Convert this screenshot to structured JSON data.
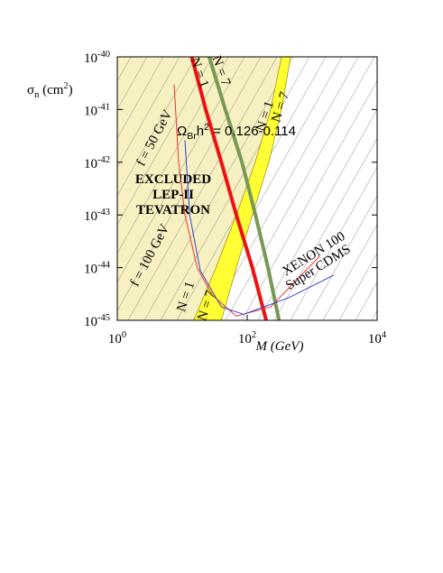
{
  "chart_data": {
    "type": "line",
    "xlabel": "M (GeV)",
    "ylabel": "σ_{n} (cm^{2})",
    "log_x": true,
    "log_y": true,
    "xlim": [
      1,
      10000
    ],
    "ylim": [
      1e-45,
      1e-40
    ],
    "xticks": [
      {
        "value": 1,
        "label": "10^{0}"
      },
      {
        "value": 100,
        "label": "10^{2}"
      },
      {
        "value": 10000,
        "label": "10^{4}"
      }
    ],
    "yticks": [
      {
        "value": 1e-45,
        "label": "10^{-45}"
      },
      {
        "value": 1e-44,
        "label": "10^{-44}"
      },
      {
        "value": 1e-43,
        "label": "10^{-43}"
      },
      {
        "value": 1e-42,
        "label": "10^{-42}"
      },
      {
        "value": 1e-41,
        "label": "10^{-41}"
      },
      {
        "value": 1e-40,
        "label": "10^{-40}"
      }
    ],
    "excluded_color": "#f7f0c0",
    "band": {
      "color": "#ffff33",
      "x_lower": [
        15,
        33,
        68,
        133,
        230,
        337
      ],
      "x_upper": [
        40,
        68,
        120,
        215,
        337,
        465
      ],
      "values": [
        1e-45,
        1e-44,
        1e-43,
        1e-42,
        1e-41,
        1e-40
      ]
    },
    "series": [
      {
        "color": "#ee1111",
        "width": 4,
        "x": [
          14,
          23,
          40,
          68,
          120,
          196
        ],
        "values": [
          1e-40,
          1e-41,
          1e-42,
          1e-43,
          1e-44,
          1e-45
        ]
      },
      {
        "color": "#779955",
        "width": 4,
        "x": [
          26,
          46,
          83,
          134,
          209,
          309
        ],
        "values": [
          1e-40,
          1e-41,
          1e-42,
          1e-43,
          1e-44,
          1e-45
        ]
      },
      {
        "color": "#ee3333",
        "width": 1,
        "x": [
          7.5,
          8.8,
          11,
          17,
          29,
          68,
          230,
          1330
        ],
        "values": [
          3e-41,
          1e-42,
          1e-43,
          1e-44,
          3e-45,
          1.2e-45,
          1.8e-45,
          1.7e-44
        ]
      },
      {
        "color": "#3344cc",
        "width": 1,
        "x": [
          11,
          13,
          19,
          40,
          88,
          440,
          2150
        ],
        "values": [
          2.6e-42,
          1e-43,
          8.7e-45,
          1.8e-45,
          1.3e-45,
          2.7e-45,
          7.2e-45
        ]
      }
    ],
    "annotations": [
      "EXCLUDED",
      "LEP-II",
      "TEVATRON",
      "Ω_{Br}h^{2} = 0.126-0.114",
      "N = 1",
      "N = 7",
      "N = 1",
      "N = 7",
      "N = 1",
      "N = 7",
      "XENON 100",
      "Super CDMS",
      "f = 50 GeV",
      "f = 100 GeV"
    ]
  }
}
